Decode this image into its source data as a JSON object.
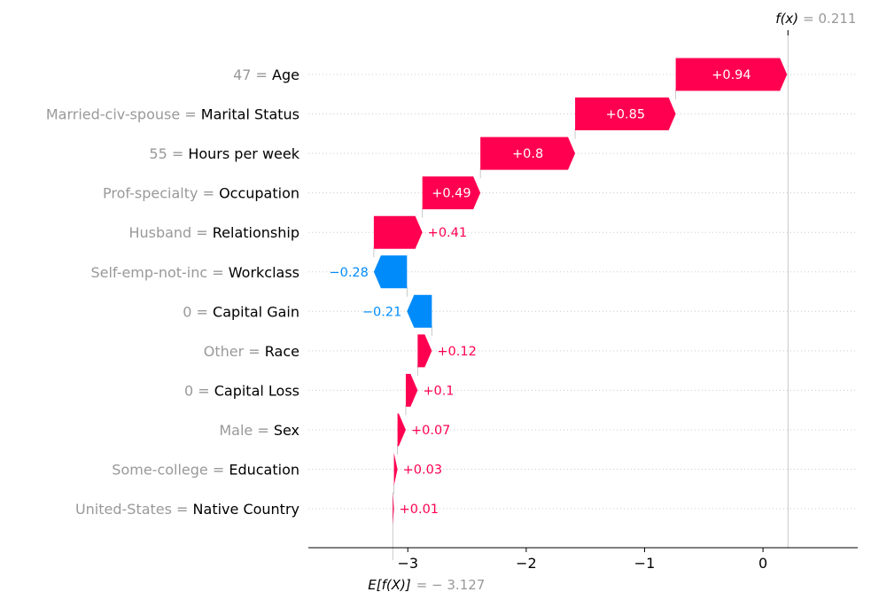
{
  "chart_data": {
    "type": "waterfall",
    "base_value": -3.127,
    "output_value": 0.211,
    "fx_label": "f(x)",
    "fx_value_text": "= 0.211",
    "ex_label": "E[f(X)]",
    "ex_value_text": "= − 3.127",
    "xlim": [
      -3.84,
      0.8
    ],
    "xticks": [
      -3,
      -2,
      -1,
      0
    ],
    "xtick_labels": [
      "−3",
      "−2",
      "−1",
      "0"
    ],
    "features": [
      {
        "value": "47",
        "name": "Age",
        "shap": 0.94,
        "label": "+0.94"
      },
      {
        "value": "Married-civ-spouse",
        "name": "Marital Status",
        "shap": 0.85,
        "label": "+0.85"
      },
      {
        "value": "55",
        "name": "Hours per week",
        "shap": 0.8,
        "label": "+0.8"
      },
      {
        "value": "Prof-specialty",
        "name": "Occupation",
        "shap": 0.49,
        "label": "+0.49"
      },
      {
        "value": "Husband",
        "name": "Relationship",
        "shap": 0.41,
        "label": "+0.41"
      },
      {
        "value": "Self-emp-not-inc",
        "name": "Workclass",
        "shap": -0.28,
        "label": "−0.28"
      },
      {
        "value": "0",
        "name": "Capital Gain",
        "shap": -0.21,
        "label": "−0.21"
      },
      {
        "value": "Other",
        "name": "Race",
        "shap": 0.12,
        "label": "+0.12"
      },
      {
        "value": "0",
        "name": "Capital Loss",
        "shap": 0.1,
        "label": "+0.1"
      },
      {
        "value": "Male",
        "name": "Sex",
        "shap": 0.07,
        "label": "+0.07"
      },
      {
        "value": "Some-college",
        "name": "Education",
        "shap": 0.03,
        "label": "+0.03"
      },
      {
        "value": "United-States",
        "name": "Native Country",
        "shap": 0.01,
        "label": "+0.01"
      }
    ],
    "colors": {
      "positive": "#ff0051",
      "negative": "#008bfb",
      "label_neutral": "#999999",
      "label_dark": "#000000"
    }
  }
}
